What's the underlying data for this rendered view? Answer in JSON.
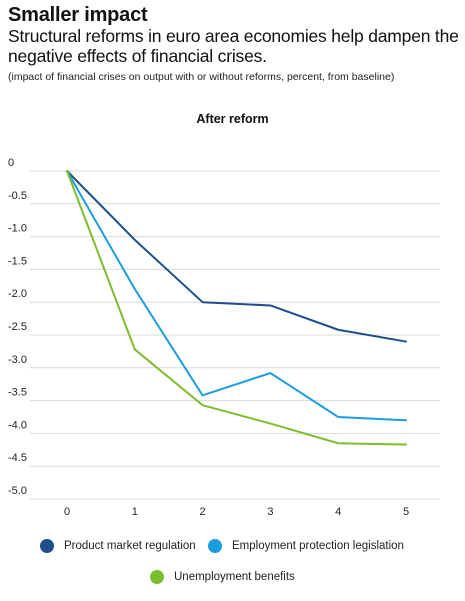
{
  "header": {
    "title": "Smaller impact",
    "subtitle": "Structural reforms in euro area economies help dampen the negative effects of financial crises.",
    "note": "(impact of financial crises on output with or without reforms, percent, from baseline)"
  },
  "chart_data": {
    "type": "line",
    "title": "After reform",
    "xlabel": "",
    "ylabel": "",
    "x": [
      0,
      1,
      2,
      3,
      4,
      5
    ],
    "xlim": [
      0,
      5
    ],
    "ylim": [
      -5.0,
      0
    ],
    "yticks": [
      "0",
      "-0.5",
      "-1.0",
      "-1.5",
      "-2.0",
      "-2.5",
      "-3.0",
      "-3.5",
      "-4.0",
      "-4.5",
      "-5.0"
    ],
    "ytick_values": [
      0,
      -0.5,
      -1.0,
      -1.5,
      -2.0,
      -2.5,
      -3.0,
      -3.5,
      -4.0,
      -4.5,
      -5.0
    ],
    "grid": true,
    "legend_position": "bottom",
    "series": [
      {
        "name": "Product market regulation",
        "color": "#1f4e8c",
        "values": [
          0,
          -1.05,
          -2.0,
          -2.05,
          -2.42,
          -2.6
        ]
      },
      {
        "name": "Employment protection legislation",
        "color": "#1a9ee0",
        "values": [
          0,
          -1.8,
          -3.42,
          -3.08,
          -3.75,
          -3.8
        ]
      },
      {
        "name": "Unemployment benefits",
        "color": "#7dbd2d",
        "values": [
          0,
          -2.72,
          -3.57,
          -3.85,
          -4.15,
          -4.17
        ]
      }
    ]
  }
}
